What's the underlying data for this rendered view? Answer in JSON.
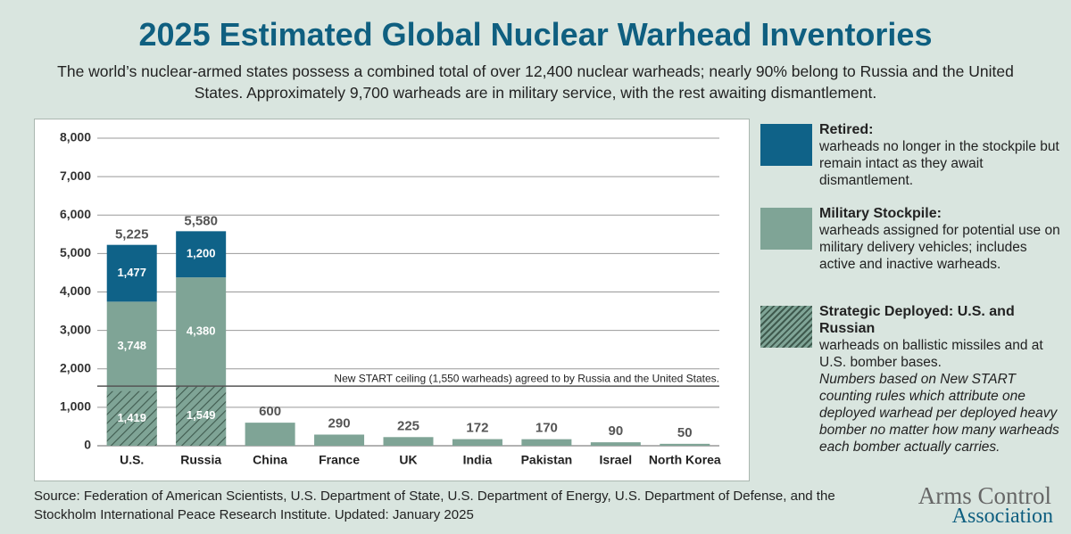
{
  "chart_data": {
    "type": "bar",
    "title": "2025 Estimated Global Nuclear Warhead Inventories",
    "subtitle": "The world’s nuclear-armed states possess a combined total of over 12,400 nuclear warheads; nearly 90% belong to Russia and the United States. Approximately 9,700 warheads are in military service, with the rest awaiting dismantlement.",
    "categories": [
      "U.S.",
      "Russia",
      "China",
      "France",
      "UK",
      "India",
      "Pakistan",
      "Israel",
      "North Korea"
    ],
    "series": [
      {
        "name": "Military Stockpile:",
        "description": "warheads assigned for potential use on military delivery vehicles; includes active and inactive warheads.",
        "color": "#7fa496",
        "values": [
          3748,
          4380,
          600,
          290,
          225,
          172,
          170,
          90,
          50
        ],
        "value_labels": [
          "3,748",
          "4,380",
          "600",
          "290",
          "225",
          "172",
          "170",
          "90",
          "50"
        ]
      },
      {
        "name": "Retired:",
        "description": "warheads no longer in the stockpile but remain intact as they await dismantlement.",
        "color": "#0f6288",
        "values": [
          1477,
          1200,
          null,
          null,
          null,
          null,
          null,
          null,
          null
        ],
        "value_labels": [
          "1,477",
          "1,200",
          null,
          null,
          null,
          null,
          null,
          null,
          null
        ]
      },
      {
        "name": "Strategic Deployed: U.S. and Russian",
        "description": "warheads on ballistic missiles and at U.S. bomber bases.",
        "note": "Numbers based on New START counting rules which attribute one deployed warhead per deployed heavy bomber no matter how many warheads each bomber actually carries.",
        "color": "#3f5a4e",
        "hatched": true,
        "values": [
          1419,
          1549,
          null,
          null,
          null,
          null,
          null,
          null,
          null
        ],
        "value_labels": [
          "1,419",
          "1,549",
          null,
          null,
          null,
          null,
          null,
          null,
          null
        ]
      }
    ],
    "totals": {
      "values": [
        5225,
        5580,
        null,
        null,
        null,
        null,
        null,
        null,
        null
      ],
      "value_labels": [
        "5,225",
        "5,580",
        null,
        null,
        null,
        null,
        null,
        null,
        null
      ]
    },
    "reference_line": {
      "value": 1550,
      "label": "New START ceiling (1,550 warheads) agreed to by Russia and the United States."
    },
    "ylim": [
      0,
      8000
    ],
    "yticks": [
      0,
      {
        "value": 1000,
        "label": "1,000"
      },
      {
        "value": 2000,
        "label": "2,000"
      },
      {
        "value": 3000,
        "label": "3,000"
      },
      {
        "value": 4000,
        "label": "4,000"
      },
      {
        "value": 5000,
        "label": "5,000"
      },
      {
        "value": 6000,
        "label": "6,000"
      },
      {
        "value": 7000,
        "label": "7,000"
      },
      {
        "value": 8000,
        "label": "8,000"
      }
    ],
    "grid": true,
    "source": "Source: Federation of American Scientists, U.S. Department of State, U.S. Department of Energy, U.S. Department of Defense, and the Stockholm International Peace Research Institute. Updated: January 2025",
    "logo": [
      "Arms Control",
      "Association"
    ]
  }
}
